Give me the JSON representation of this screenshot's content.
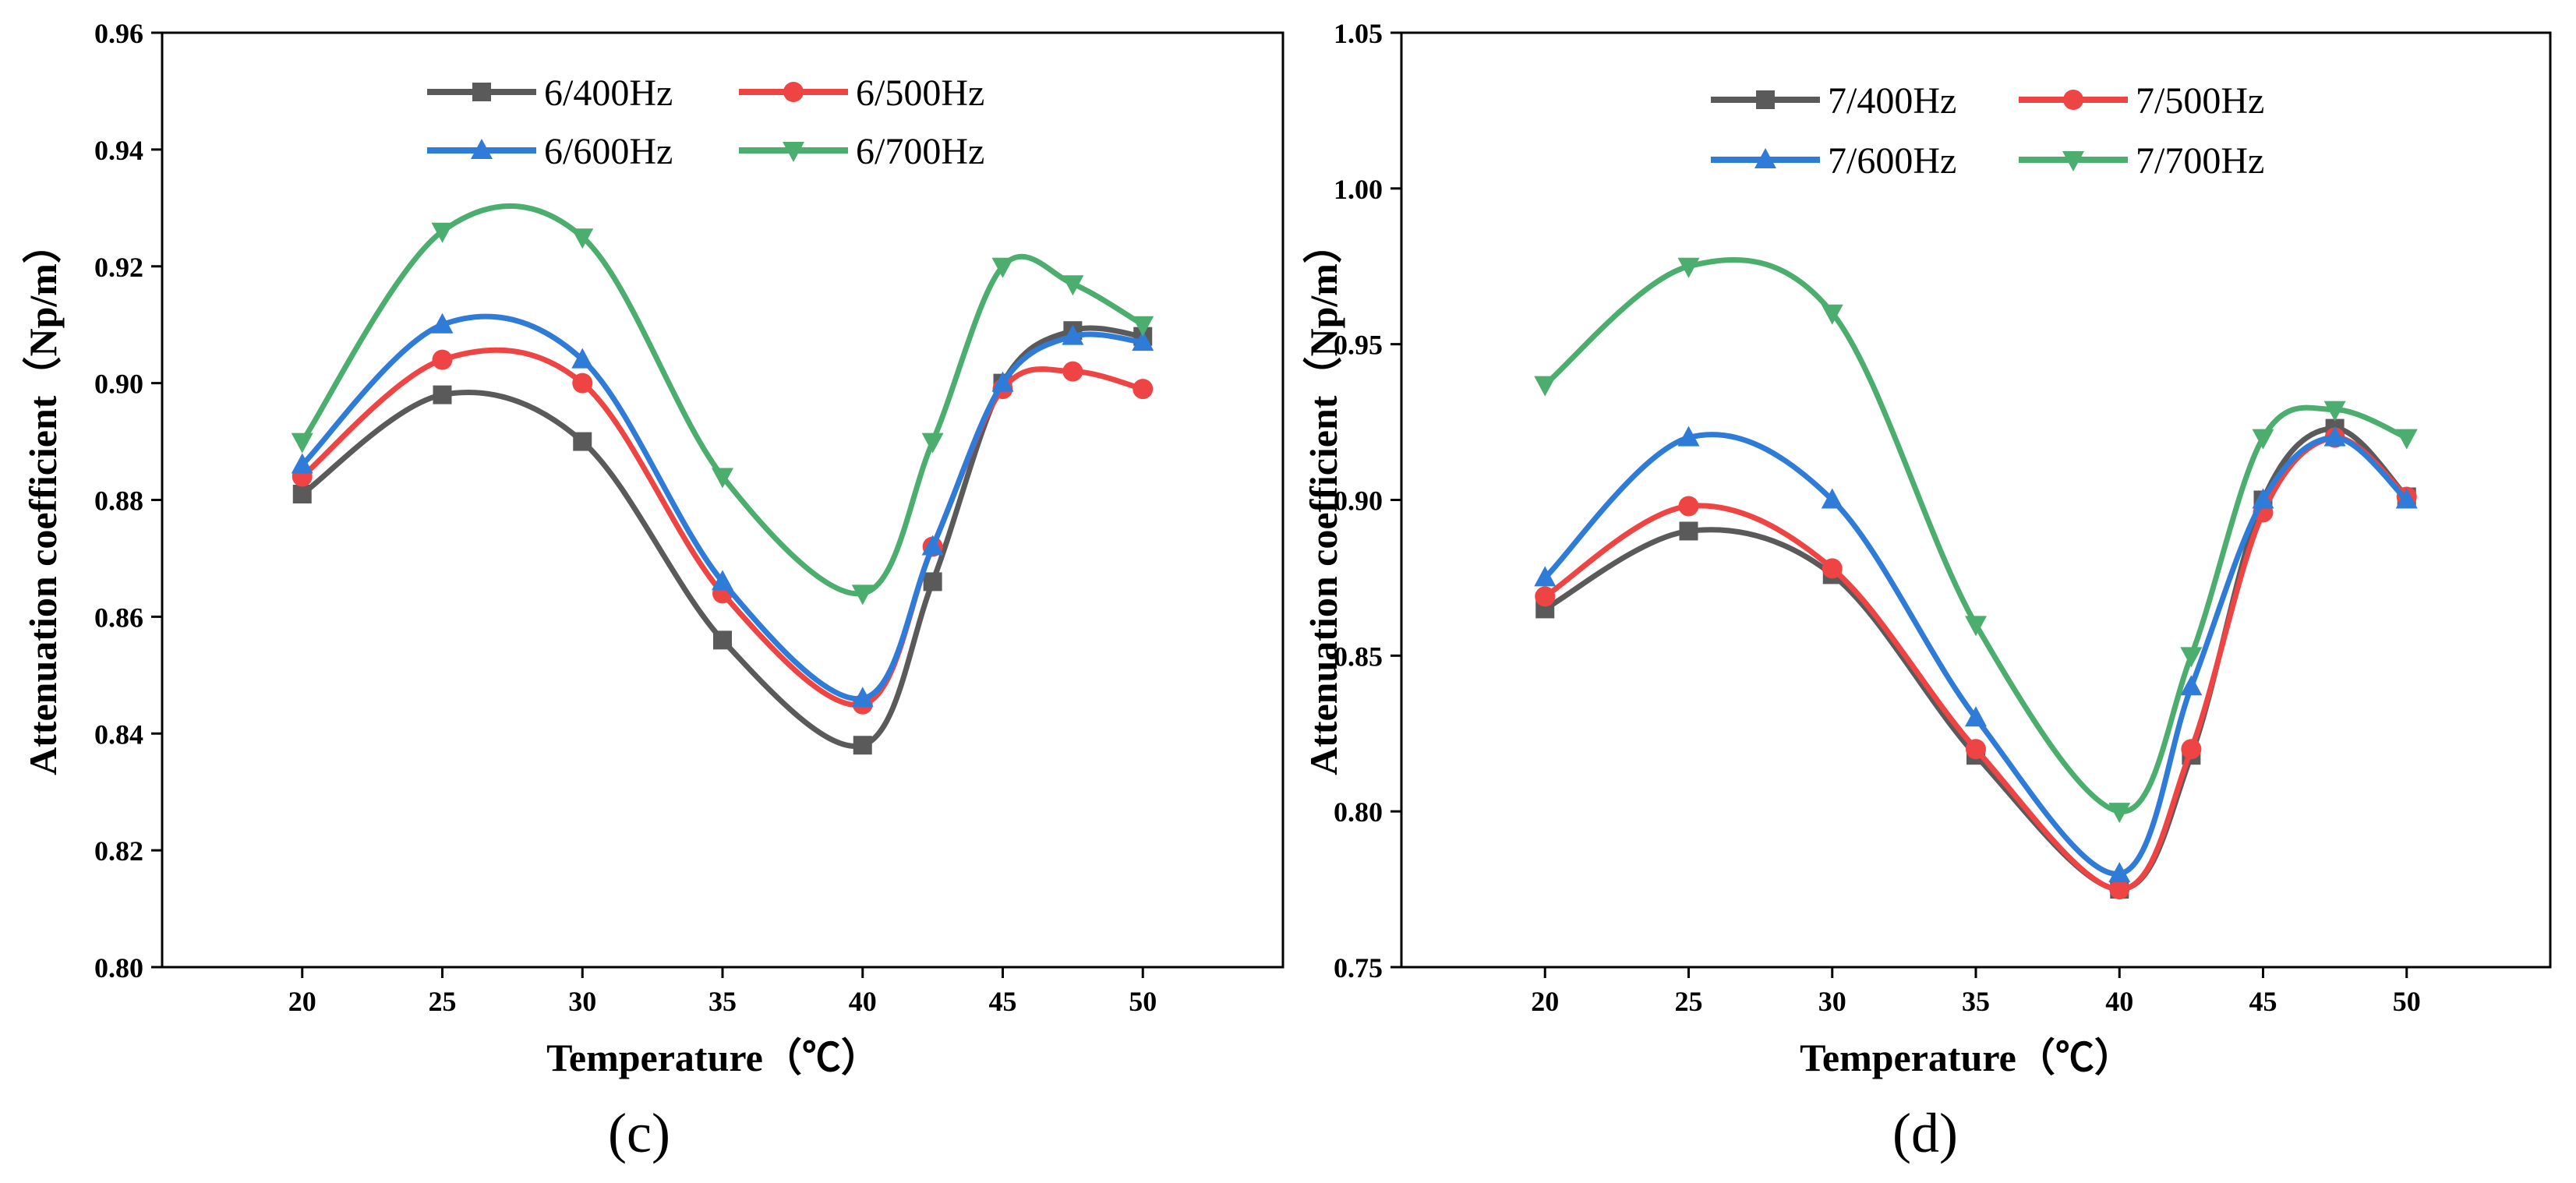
{
  "chart_data": [
    {
      "type": "line",
      "panel_label": "(c)",
      "xlabel": "Temperature（℃）",
      "ylabel": "Attenuation coefficient（Np/m）",
      "xlim": [
        15,
        55
      ],
      "ylim": [
        0.8,
        0.96
      ],
      "xticks": [
        20,
        25,
        30,
        35,
        40,
        45,
        50
      ],
      "xtick_labels": [
        "20",
        "25",
        "30",
        "35",
        "40",
        "45",
        "50"
      ],
      "yticks": [
        0.8,
        0.82,
        0.84,
        0.86,
        0.88,
        0.9,
        0.92,
        0.94,
        0.96
      ],
      "ytick_labels": [
        "0.80",
        "0.82",
        "0.84",
        "0.86",
        "0.88",
        "0.90",
        "0.92",
        "0.94",
        "0.96"
      ],
      "legend_position": "top-center",
      "x": [
        20,
        25,
        30,
        35,
        40,
        42.5,
        45,
        47.5,
        50
      ],
      "series": [
        {
          "name": "6/400Hz",
          "color": "#5a5a5a",
          "marker": "square",
          "values": [
            0.881,
            0.898,
            0.89,
            0.856,
            0.838,
            0.866,
            0.9,
            0.909,
            0.908
          ]
        },
        {
          "name": "6/500Hz",
          "color": "#ef4444",
          "marker": "circle",
          "values": [
            0.884,
            0.904,
            0.9,
            0.864,
            0.845,
            0.872,
            0.899,
            0.902,
            0.899
          ]
        },
        {
          "name": "6/600Hz",
          "color": "#2f7bd8",
          "marker": "triangle-up",
          "values": [
            0.886,
            0.91,
            0.904,
            0.866,
            0.846,
            0.872,
            0.9,
            0.908,
            0.907
          ]
        },
        {
          "name": "6/700Hz",
          "color": "#4cae6e",
          "marker": "triangle-down",
          "values": [
            0.89,
            0.926,
            0.925,
            0.884,
            0.864,
            0.89,
            0.92,
            0.917,
            0.91
          ]
        }
      ]
    },
    {
      "type": "line",
      "panel_label": "(d)",
      "xlabel": "Temperature（℃）",
      "ylabel": "Attenuation coefficient（Np/m）",
      "xlim": [
        15,
        55
      ],
      "ylim": [
        0.75,
        1.05
      ],
      "xticks": [
        20,
        25,
        30,
        35,
        40,
        45,
        50
      ],
      "xtick_labels": [
        "20",
        "25",
        "30",
        "35",
        "40",
        "45",
        "50"
      ],
      "yticks": [
        0.75,
        0.8,
        0.85,
        0.9,
        0.95,
        1.0,
        1.05
      ],
      "ytick_labels": [
        "0.75",
        "0.80",
        "0.85",
        "0.90",
        "0.95",
        "1.00",
        "1.05"
      ],
      "legend_position": "top-center",
      "x": [
        20,
        25,
        30,
        35,
        40,
        42.5,
        45,
        47.5,
        50
      ],
      "series": [
        {
          "name": "7/400Hz",
          "color": "#5a5a5a",
          "marker": "square",
          "values": [
            0.865,
            0.89,
            0.876,
            0.818,
            0.775,
            0.818,
            0.9,
            0.923,
            0.901
          ]
        },
        {
          "name": "7/500Hz",
          "color": "#ef4444",
          "marker": "circle",
          "values": [
            0.869,
            0.898,
            0.878,
            0.82,
            0.775,
            0.82,
            0.896,
            0.92,
            0.901
          ]
        },
        {
          "name": "7/600Hz",
          "color": "#2f7bd8",
          "marker": "triangle-up",
          "values": [
            0.875,
            0.92,
            0.9,
            0.83,
            0.78,
            0.84,
            0.9,
            0.92,
            0.9
          ]
        },
        {
          "name": "7/700Hz",
          "color": "#4cae6e",
          "marker": "triangle-down",
          "values": [
            0.937,
            0.975,
            0.96,
            0.86,
            0.8,
            0.85,
            0.92,
            0.929,
            0.92
          ]
        }
      ]
    }
  ]
}
